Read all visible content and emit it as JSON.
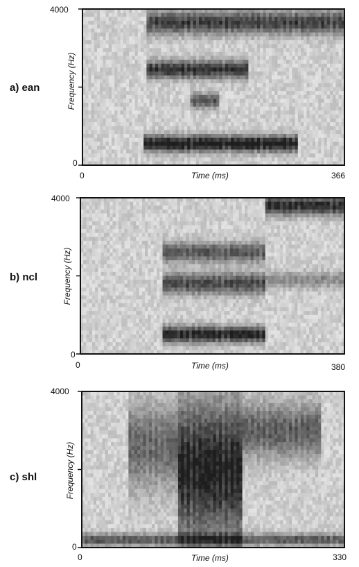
{
  "chart_data": [
    {
      "type": "heatmap",
      "panel_label": "a) ean",
      "title": "",
      "xlabel": "Time (ms)",
      "ylabel": "Frequency (Hz)",
      "xlim": [
        0,
        366
      ],
      "ylim": [
        0,
        4000
      ],
      "x_tick_labels": [
        "0",
        "366"
      ],
      "y_tick_labels": [
        "0",
        "4000"
      ],
      "energy_bands": [
        {
          "t_start": 85,
          "t_end": 300,
          "f_center": 550,
          "f_width": 420,
          "intensity": 0.9
        },
        {
          "t_start": 90,
          "t_end": 230,
          "f_center": 2450,
          "f_width": 480,
          "intensity": 0.75
        },
        {
          "t_start": 90,
          "t_end": 366,
          "f_center": 3650,
          "f_width": 600,
          "intensity": 0.7
        },
        {
          "t_start": 150,
          "t_end": 190,
          "f_center": 1650,
          "f_width": 380,
          "intensity": 0.6
        }
      ]
    },
    {
      "type": "heatmap",
      "panel_label": "b) ncl",
      "title": "",
      "xlabel": "Time (ms)",
      "ylabel": "Frequency (Hz)",
      "xlim": [
        0,
        380
      ],
      "ylim": [
        0,
        4000
      ],
      "x_tick_labels": [
        "0",
        "380"
      ],
      "y_tick_labels": [
        "0",
        "4000"
      ],
      "energy_bands": [
        {
          "t_start": 120,
          "t_end": 265,
          "f_center": 500,
          "f_width": 420,
          "intensity": 0.85
        },
        {
          "t_start": 120,
          "t_end": 265,
          "f_center": 1800,
          "f_width": 550,
          "intensity": 0.65
        },
        {
          "t_start": 120,
          "t_end": 265,
          "f_center": 2600,
          "f_width": 500,
          "intensity": 0.6
        },
        {
          "t_start": 265,
          "t_end": 380,
          "f_center": 3800,
          "f_width": 500,
          "intensity": 0.8
        },
        {
          "t_start": 265,
          "t_end": 380,
          "f_center": 1900,
          "f_width": 400,
          "intensity": 0.35
        }
      ]
    },
    {
      "type": "heatmap",
      "panel_label": "c) shl",
      "title": "",
      "xlabel": "Time (ms)",
      "ylabel": "Frequency (Hz)",
      "xlim": [
        0,
        330
      ],
      "ylim": [
        0,
        4000
      ],
      "x_tick_labels": [
        "0",
        "330"
      ],
      "y_tick_labels": [
        "0",
        "4000"
      ],
      "energy_bands": [
        {
          "t_start": 0,
          "t_end": 330,
          "f_center": 200,
          "f_width": 300,
          "intensity": 0.6
        },
        {
          "t_start": 60,
          "t_end": 120,
          "f_center": 2600,
          "f_width": 2200,
          "intensity": 0.5
        },
        {
          "t_start": 120,
          "t_end": 200,
          "f_center": 2000,
          "f_width": 3600,
          "intensity": 0.85
        },
        {
          "t_start": 200,
          "t_end": 300,
          "f_center": 3000,
          "f_width": 1400,
          "intensity": 0.55
        }
      ]
    }
  ]
}
